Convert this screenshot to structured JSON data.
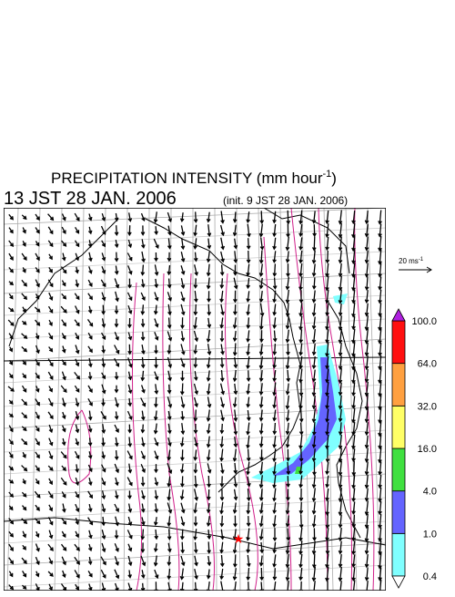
{
  "title": {
    "text": "PRECIPITATION INTENSITY (mm hour",
    "superscript": "-1",
    "closing": ")"
  },
  "valid_time": "13 JST 28 JAN. 2006",
  "init_time": "(init. 9 JST 28 JAN. 2006)",
  "reference_vector": {
    "label": "20 ms",
    "superscript": "-1"
  },
  "colorbar": {
    "labels": [
      "0.4",
      "1.0",
      "4.0",
      "16.0",
      "32.0",
      "64.0",
      "100.0"
    ],
    "colors": [
      "#80ffff",
      "#6464ff",
      "#40e040",
      "#ffff66",
      "#ffa040",
      "#ff1010"
    ],
    "over_color": "#b020e0",
    "under_color": "#ffffff"
  }
}
